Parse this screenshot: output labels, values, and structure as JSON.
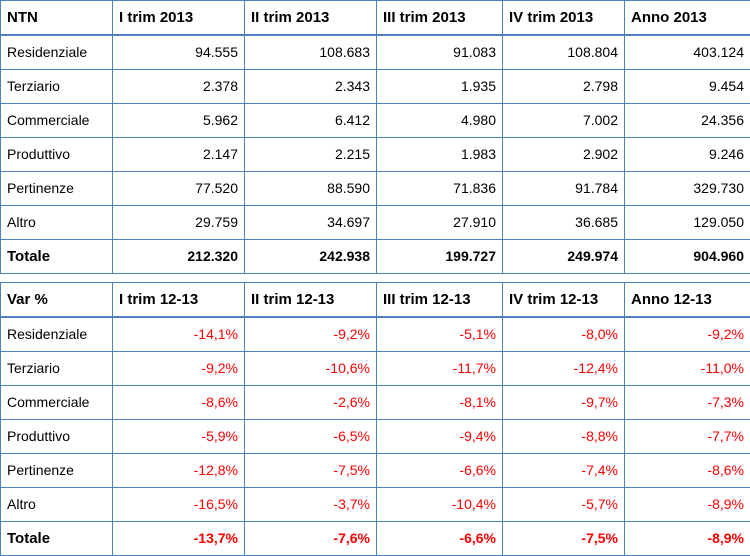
{
  "ntn_table": {
    "header": [
      "NTN",
      "I trim 2013",
      "II trim 2013",
      "III trim 2013",
      "IV trim 2013",
      "Anno 2013"
    ],
    "rows": [
      {
        "label": "Residenziale",
        "values": [
          "94.555",
          "108.683",
          "91.083",
          "108.804",
          "403.124"
        ]
      },
      {
        "label": "Terziario",
        "values": [
          "2.378",
          "2.343",
          "1.935",
          "2.798",
          "9.454"
        ]
      },
      {
        "label": "Commerciale",
        "values": [
          "5.962",
          "6.412",
          "4.980",
          "7.002",
          "24.356"
        ]
      },
      {
        "label": "Produttivo",
        "values": [
          "2.147",
          "2.215",
          "1.983",
          "2.902",
          "9.246"
        ]
      },
      {
        "label": "Pertinenze",
        "values": [
          "77.520",
          "88.590",
          "71.836",
          "91.784",
          "329.730"
        ]
      },
      {
        "label": "Altro",
        "values": [
          "29.759",
          "34.697",
          "27.910",
          "36.685",
          "129.050"
        ]
      }
    ],
    "total": {
      "label": "Totale",
      "values": [
        "212.320",
        "242.938",
        "199.727",
        "249.974",
        "904.960"
      ]
    }
  },
  "var_table": {
    "header": [
      "Var %",
      "I trim 12-13",
      "II trim 12-13",
      "III trim 12-13",
      "IV trim 12-13",
      "Anno 12-13"
    ],
    "rows": [
      {
        "label": "Residenziale",
        "values": [
          "-14,1%",
          "-9,2%",
          "-5,1%",
          "-8,0%",
          "-9,2%"
        ]
      },
      {
        "label": "Terziario",
        "values": [
          "-9,2%",
          "-10,6%",
          "-11,7%",
          "-12,4%",
          "-11,0%"
        ]
      },
      {
        "label": "Commerciale",
        "values": [
          "-8,6%",
          "-2,6%",
          "-8,1%",
          "-9,7%",
          "-7,3%"
        ]
      },
      {
        "label": "Produttivo",
        "values": [
          "-5,9%",
          "-6,5%",
          "-9,4%",
          "-8,8%",
          "-7,7%"
        ]
      },
      {
        "label": "Pertinenze",
        "values": [
          "-12,8%",
          "-7,5%",
          "-6,6%",
          "-7,4%",
          "-8,6%"
        ]
      },
      {
        "label": "Altro",
        "values": [
          "-16,5%",
          "-3,7%",
          "-10,4%",
          "-5,7%",
          "-8,9%"
        ]
      }
    ],
    "total": {
      "label": "Totale",
      "values": [
        "-13,7%",
        "-7,6%",
        "-6,6%",
        "-7,5%",
        "-8,9%"
      ]
    }
  },
  "colors": {
    "border": "#4f81bd",
    "negative": "#ff0000"
  }
}
